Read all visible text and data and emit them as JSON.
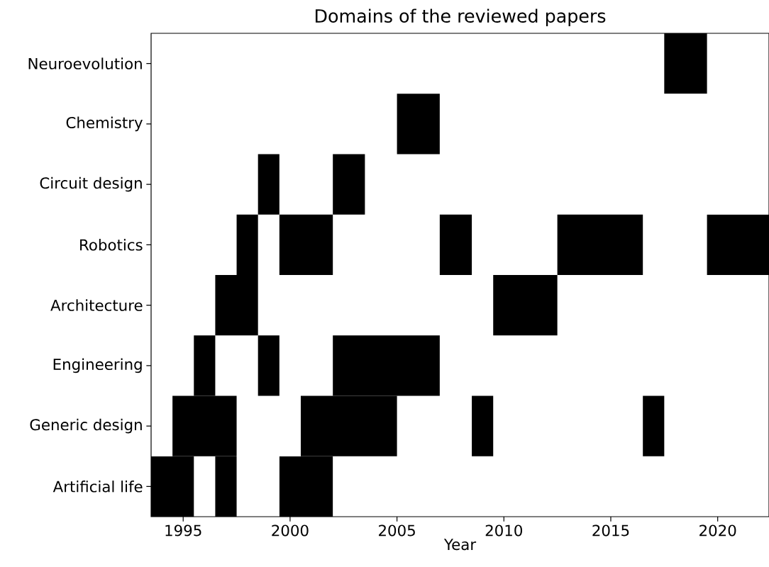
{
  "chart_data": {
    "type": "bar",
    "orientation": "horizontal",
    "title": "Domains of the reviewed papers",
    "xlabel": "Year",
    "categories": [
      "Neuroevolution",
      "Chemistry",
      "Circuit design",
      "Robotics",
      "Architecture",
      "Engineering",
      "Generic design",
      "Artificial life"
    ],
    "xlim": [
      1993.5,
      2022.4
    ],
    "xticks": [
      1995,
      2000,
      2005,
      2010,
      2015,
      2020
    ],
    "series": [
      {
        "color": "#000000",
        "base": [
          2017.5,
          2005.0,
          1998.5,
          1997.5,
          1996.5,
          1995.5,
          1994.5,
          1993.5
        ],
        "values": [
          2.0,
          2.0,
          1.0,
          1.0,
          2.0,
          1.0,
          3.0,
          2.0
        ]
      },
      {
        "color": "#000000",
        "base": [
          null,
          null,
          2002.0,
          1999.5,
          2009.5,
          1998.5,
          2000.5,
          1996.5
        ],
        "values": [
          null,
          null,
          1.5,
          2.5,
          3.0,
          1.0,
          4.5,
          1.0
        ]
      },
      {
        "color": "#000000",
        "base": [
          null,
          null,
          null,
          2007.0,
          null,
          2002.0,
          2008.5,
          1999.5
        ],
        "values": [
          null,
          null,
          null,
          1.5,
          null,
          5.0,
          1.0,
          2.5
        ]
      },
      {
        "color": "#000000",
        "base": [
          null,
          null,
          null,
          2012.5,
          null,
          null,
          2016.5,
          null
        ],
        "values": [
          null,
          null,
          null,
          4.0,
          null,
          null,
          1.0,
          null
        ]
      },
      {
        "color": "#000000",
        "base": [
          null,
          null,
          null,
          2019.5,
          null,
          null,
          null,
          null
        ],
        "values": [
          null,
          null,
          null,
          2.9,
          null,
          null,
          null,
          null
        ]
      }
    ]
  }
}
